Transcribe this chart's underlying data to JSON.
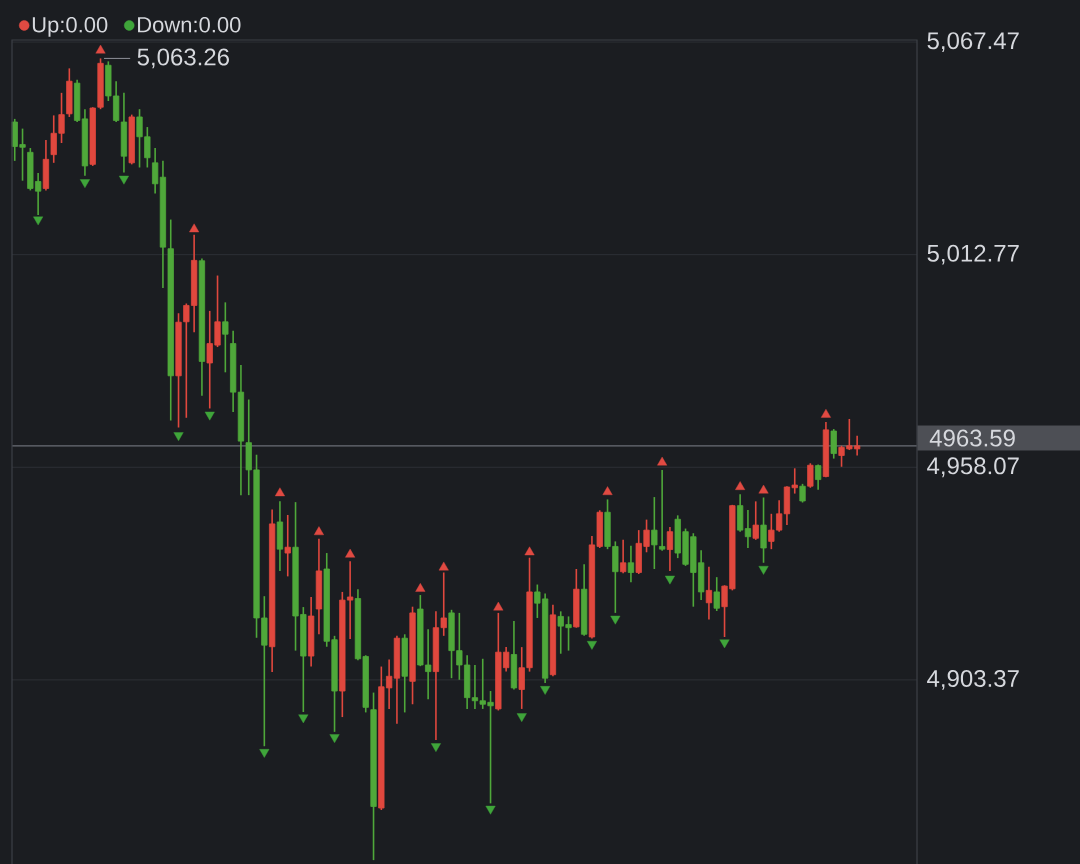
{
  "chart_data": {
    "type": "candlestick",
    "categories": [
      null,
      null,
      null,
      null,
      null,
      null,
      null,
      null,
      null,
      null,
      null,
      null,
      null,
      null,
      null,
      null,
      null,
      null,
      null,
      null,
      null,
      null,
      null,
      null,
      null,
      null,
      null,
      null,
      null,
      null,
      null,
      null,
      null,
      null,
      null,
      null,
      null,
      null,
      null,
      null,
      null,
      null,
      null,
      null,
      null,
      null,
      null,
      null,
      null,
      null,
      null,
      null,
      null,
      null,
      null,
      null,
      null,
      null,
      null,
      null,
      null,
      null,
      null,
      null,
      null,
      null,
      null,
      null,
      null,
      null,
      null,
      null,
      null,
      null,
      null,
      null,
      null,
      null,
      null,
      null,
      null,
      null,
      null,
      null,
      null,
      null,
      null,
      null,
      null,
      null,
      null,
      null,
      null,
      null,
      null,
      null,
      null,
      null,
      null,
      null,
      null,
      null,
      null,
      null,
      null,
      null,
      null,
      null,
      null
    ],
    "ohlc": [
      [
        5046.9,
        5047.7,
        5036.9,
        5040.6
      ],
      [
        5041.1,
        5045.2,
        5031.8,
        5040.4
      ],
      [
        5039.1,
        5040.2,
        5029.3,
        5029.8
      ],
      [
        5031.6,
        5033.8,
        5023.0,
        5029.1
      ],
      [
        5029.8,
        5042.3,
        5029.3,
        5037.3
      ],
      [
        5038.5,
        5048.6,
        5036.4,
        5044.0
      ],
      [
        5044.0,
        5054.4,
        5041.5,
        5048.8
      ],
      [
        5049.0,
        5060.7,
        5048.2,
        5057.4
      ],
      [
        5056.9,
        5057.8,
        5046.9,
        5047.3
      ],
      [
        5047.7,
        5050.2,
        5033.1,
        5035.6
      ],
      [
        5036.0,
        5050.7,
        5035.6,
        5050.5
      ],
      [
        5050.7,
        5063.26,
        5050.2,
        5062.0
      ],
      [
        5061.5,
        5062.5,
        5052.3,
        5053.6
      ],
      [
        5053.6,
        5057.4,
        5046.9,
        5047.3
      ],
      [
        5046.9,
        5054.4,
        5033.9,
        5038.1
      ],
      [
        5036.4,
        5048.8,
        5036.0,
        5048.2
      ],
      [
        5048.2,
        5050.2,
        5035.2,
        5043.1
      ],
      [
        5043.1,
        5045.6,
        5035.2,
        5037.7
      ],
      [
        5036.4,
        5040.2,
        5028.5,
        5031.0
      ],
      [
        5032.7,
        5036.9,
        5004.2,
        5014.7
      ],
      [
        5014.3,
        5021.8,
        4970.1,
        4981.6
      ],
      [
        4981.6,
        4997.7,
        4968.3,
        4995.4
      ],
      [
        4995.5,
        5000.2,
        4970.8,
        4999.7
      ],
      [
        4999.7,
        5017.9,
        4992.8,
        5011.3
      ],
      [
        5011.2,
        5011.8,
        4976.5,
        4985.3
      ],
      [
        4984.9,
        4998.3,
        4973.2,
        4989.9
      ],
      [
        4989.5,
        5007.4,
        4989.0,
        4995.5
      ],
      [
        4995.5,
        5000.5,
        4982.5,
        4992.3
      ],
      [
        4989.9,
        4993.2,
        4972.3,
        4977.4
      ],
      [
        4977.4,
        4984.4,
        4950.9,
        4964.8
      ],
      [
        4964.4,
        4975.5,
        4950.9,
        4957.4
      ],
      [
        4957.4,
        4961.3,
        4914.2,
        4919.3
      ],
      [
        4919.3,
        4924.9,
        4886.3,
        4912.3
      ],
      [
        4911.9,
        4947.2,
        4905.4,
        4943.5
      ],
      [
        4944.0,
        4949.3,
        4931.4,
        4937.0
      ],
      [
        4936.0,
        4945.8,
        4930.0,
        4937.5
      ],
      [
        4937.5,
        4949.1,
        4910.9,
        4919.8
      ],
      [
        4920.2,
        4922.1,
        4895.1,
        4909.5
      ],
      [
        4909.5,
        4924.7,
        4906.8,
        4919.8
      ],
      [
        4921.6,
        4939.7,
        4915.1,
        4931.4
      ],
      [
        4931.9,
        4936.0,
        4911.9,
        4913.3
      ],
      [
        4913.7,
        4914.7,
        4890.0,
        4900.5
      ],
      [
        4900.5,
        4926.0,
        4893.8,
        4923.9
      ],
      [
        4923.9,
        4933.9,
        4913.9,
        4924.7
      ],
      [
        4924.3,
        4926.7,
        4908.4,
        4908.8
      ],
      [
        4909.4,
        4909.7,
        4895.0,
        4896.3
      ],
      [
        4895.7,
        4900.1,
        4857.0,
        4870.8
      ],
      [
        4870.4,
        4906.8,
        4869.9,
        4901.6
      ],
      [
        4901.3,
        4908.6,
        4895.9,
        4904.3
      ],
      [
        4903.8,
        4914.7,
        4892.1,
        4914.1
      ],
      [
        4914.1,
        4915.1,
        4895.0,
        4904.3
      ],
      [
        4903.0,
        4922.2,
        4897.1,
        4920.6
      ],
      [
        4921.6,
        4925.2,
        4906.9,
        4907.2
      ],
      [
        4907.2,
        4916.4,
        4898.4,
        4905.5
      ],
      [
        4905.5,
        4921.0,
        4887.9,
        4916.8
      ],
      [
        4916.8,
        4931.0,
        4914.7,
        4919.3
      ],
      [
        4920.6,
        4921.4,
        4903.8,
        4910.9
      ],
      [
        4910.9,
        4920.6,
        4903.4,
        4907.2
      ],
      [
        4907.2,
        4909.7,
        4895.9,
        4898.8
      ],
      [
        4898.8,
        4907.2,
        4895.9,
        4898.0
      ],
      [
        4898.0,
        4908.8,
        4895.9,
        4897.1
      ],
      [
        4897.6,
        4900.5,
        4871.6,
        4896.7
      ],
      [
        4895.9,
        4920.6,
        4895.5,
        4910.5
      ],
      [
        4906.5,
        4911.8,
        4905.5,
        4910.5
      ],
      [
        4909.9,
        4918.5,
        4900.9,
        4901.3
      ],
      [
        4900.9,
        4911.8,
        4895.9,
        4906.5
      ],
      [
        4906.5,
        4934.8,
        4905.5,
        4926.0
      ],
      [
        4926.0,
        4927.9,
        4919.3,
        4923.1
      ],
      [
        4924.2,
        4925.6,
        4902.6,
        4903.8
      ],
      [
        4904.7,
        4922.7,
        4904.3,
        4920.1
      ],
      [
        4919.7,
        4921.0,
        4910.1,
        4917.2
      ],
      [
        4917.6,
        4919.7,
        4910.9,
        4916.8
      ],
      [
        4917.0,
        4931.9,
        4916.8,
        4926.7
      ],
      [
        4926.7,
        4933.1,
        4914.7,
        4915.1
      ],
      [
        4914.4,
        4940.4,
        4914.0,
        4938.1
      ],
      [
        4937.7,
        4947.0,
        4937.3,
        4946.5
      ],
      [
        4946.5,
        4949.8,
        4937.0,
        4937.7
      ],
      [
        4937.7,
        4939.0,
        4920.6,
        4931.2
      ],
      [
        4931.2,
        4939.4,
        4930.8,
        4933.5
      ],
      [
        4933.5,
        4937.9,
        4928.5,
        4931.0
      ],
      [
        4931.0,
        4941.9,
        4930.6,
        4938.5
      ],
      [
        4937.7,
        4944.6,
        4936.2,
        4941.9
      ],
      [
        4941.9,
        4950.4,
        4931.9,
        4938.1
      ],
      [
        4937.7,
        4957.4,
        4936.6,
        4937.0
      ],
      [
        4936.9,
        4942.7,
        4931.4,
        4941.5
      ],
      [
        4944.7,
        4945.7,
        4934.7,
        4936.0
      ],
      [
        4941.5,
        4942.3,
        4932.7,
        4933.1
      ],
      [
        4940.2,
        4941.1,
        4922.2,
        4931.0
      ],
      [
        4933.5,
        4936.7,
        4923.9,
        4926.0
      ],
      [
        4923.2,
        4932.5,
        4918.9,
        4926.4
      ],
      [
        4926.0,
        4929.8,
        4921.1,
        4921.8
      ],
      [
        4922.2,
        4927.7,
        4914.4,
        4927.5
      ],
      [
        4926.8,
        4948.4,
        4926.4,
        4948.2
      ],
      [
        4948.2,
        4951.1,
        4941.5,
        4941.9
      ],
      [
        4942.3,
        4947.1,
        4937.3,
        4940.2
      ],
      [
        4939.8,
        4949.3,
        4939.4,
        4943.2
      ],
      [
        4943.2,
        4950.3,
        4933.5,
        4937.3
      ],
      [
        4939.0,
        4946.1,
        4937.0,
        4941.9
      ],
      [
        4941.9,
        4949.6,
        4941.5,
        4946.1
      ],
      [
        4946.1,
        4953.2,
        4943.2,
        4953.0
      ],
      [
        4952.8,
        4957.8,
        4951.3,
        4953.5
      ],
      [
        4953.2,
        4953.8,
        4949.0,
        4949.4
      ],
      [
        4953.2,
        4959.1,
        4952.8,
        4958.6
      ],
      [
        4958.5,
        4958.8,
        4952.3,
        4954.9
      ],
      [
        4955.7,
        4969.7,
        4955.5,
        4967.7
      ],
      [
        4967.4,
        4967.9,
        4960.3,
        4961.6
      ],
      [
        4961.1,
        4963.6,
        4958.2,
        4963.2
      ],
      [
        4962.8,
        4970.5,
        4962.5,
        4963.6
      ],
      [
        4962.8,
        4966.2,
        4961.1,
        4963.59
      ]
    ],
    "colors": [
      "#4fa83a",
      "#4fa83a",
      "#4fa83a",
      "#4fa83a",
      "#e0483e",
      "#e0483e",
      "#e0483e",
      "#e0483e",
      "#4fa83a",
      "#4fa83a",
      "#e0483e",
      "#e0483e",
      "#4fa83a",
      "#4fa83a",
      "#4fa83a",
      "#e0483e",
      "#4fa83a",
      "#4fa83a",
      "#4fa83a",
      "#4fa83a",
      "#4fa83a",
      "#e0483e",
      "#e0483e",
      "#e0483e",
      "#4fa83a",
      "#e0483e",
      "#e0483e",
      "#4fa83a",
      "#4fa83a",
      "#4fa83a",
      "#4fa83a",
      "#4fa83a",
      "#4fa83a",
      "#e0483e",
      "#4fa83a",
      "#e0483e",
      "#4fa83a",
      "#4fa83a",
      "#e0483e",
      "#e0483e",
      "#4fa83a",
      "#4fa83a",
      "#e0483e",
      "#e0483e",
      "#4fa83a",
      "#4fa83a",
      "#4fa83a",
      "#e0483e",
      "#e0483e",
      "#e0483e",
      "#4fa83a",
      "#e0483e",
      "#4fa83a",
      "#4fa83a",
      "#e0483e",
      "#e0483e",
      "#4fa83a",
      "#4fa83a",
      "#4fa83a",
      "#4fa83a",
      "#4fa83a",
      "#4fa83a",
      "#e0483e",
      "#e0483e",
      "#4fa83a",
      "#e0483e",
      "#e0483e",
      "#4fa83a",
      "#4fa83a",
      "#e0483e",
      "#4fa83a",
      "#4fa83a",
      "#e0483e",
      "#4fa83a",
      "#e0483e",
      "#e0483e",
      "#4fa83a",
      "#4fa83a",
      "#e0483e",
      "#4fa83a",
      "#e0483e",
      "#e0483e",
      "#4fa83a",
      "#4fa83a",
      "#e0483e",
      "#4fa83a",
      "#4fa83a",
      "#4fa83a",
      "#4fa83a",
      "#e0483e",
      "#4fa83a",
      "#e0483e",
      "#e0483e",
      "#4fa83a",
      "#4fa83a",
      "#e0483e",
      "#4fa83a",
      "#e0483e",
      "#e0483e",
      "#e0483e",
      "#e0483e",
      "#4fa83a",
      "#e0483e",
      "#4fa83a",
      "#e0483e",
      "#4fa83a",
      "#e0483e",
      "#e0483e",
      "#e0483e"
    ],
    "series": [
      {
        "name": "Up:0.00",
        "type": "scatter",
        "color": "#e04a42",
        "values": [
          null,
          null,
          null,
          null,
          null,
          null,
          null,
          null,
          null,
          null,
          null,
          5065.3,
          null,
          null,
          null,
          null,
          null,
          null,
          null,
          null,
          null,
          null,
          null,
          5019.3,
          null,
          null,
          null,
          null,
          null,
          null,
          null,
          null,
          null,
          null,
          4951.4,
          null,
          null,
          null,
          null,
          4941.4,
          null,
          null,
          null,
          4935.6,
          null,
          null,
          null,
          null,
          null,
          null,
          null,
          null,
          4926.8,
          null,
          null,
          4932.3,
          null,
          null,
          null,
          null,
          null,
          null,
          4922.0,
          null,
          null,
          null,
          4936.2,
          null,
          null,
          null,
          null,
          null,
          null,
          null,
          null,
          null,
          4951.7,
          null,
          null,
          null,
          null,
          null,
          null,
          4959.3,
          null,
          null,
          null,
          null,
          null,
          null,
          null,
          null,
          null,
          4953.0,
          null,
          null,
          4952.1,
          null,
          null,
          null,
          null,
          null,
          null,
          null,
          4971.6,
          null,
          null,
          null,
          null
        ]
      },
      {
        "name": "Down:0.00",
        "type": "scatter",
        "color": "#3fa53a",
        "values": [
          null,
          null,
          null,
          5021.8,
          null,
          null,
          null,
          null,
          null,
          5031.4,
          null,
          null,
          null,
          null,
          5032.3,
          null,
          null,
          null,
          null,
          null,
          null,
          4966.3,
          null,
          null,
          null,
          4971.6,
          null,
          null,
          null,
          null,
          null,
          null,
          4884.8,
          null,
          null,
          null,
          null,
          4893.7,
          null,
          null,
          null,
          4888.6,
          null,
          null,
          null,
          null,
          null,
          null,
          null,
          null,
          null,
          null,
          null,
          null,
          4886.3,
          null,
          null,
          null,
          null,
          null,
          null,
          4870.2,
          null,
          null,
          null,
          4894.0,
          null,
          null,
          4901.0,
          null,
          null,
          null,
          null,
          null,
          4912.6,
          null,
          null,
          4919.1,
          null,
          null,
          null,
          null,
          null,
          null,
          4929.4,
          null,
          null,
          null,
          null,
          null,
          null,
          4913.0,
          null,
          null,
          null,
          null,
          4931.9,
          null,
          null,
          null,
          null,
          null,
          null,
          null,
          null,
          null,
          null,
          null,
          null
        ]
      }
    ],
    "ylim": [
      4856,
      5068
    ],
    "yticks": [
      {
        "value": 5067.47,
        "label": "5,067.47"
      },
      {
        "value": 5012.77,
        "label": "5,012.77"
      },
      {
        "value": 4958.07,
        "label": "4,958.07"
      },
      {
        "value": 4903.37,
        "label": "4,903.37"
      }
    ],
    "grid": "y",
    "legend": "top left",
    "marker": "triangle",
    "ref_lines": [
      {
        "axis": "y",
        "value": 4963.59,
        "label": "4963.59",
        "color": "#6b6e76"
      }
    ],
    "annotations": [
      "5,063.26"
    ]
  }
}
